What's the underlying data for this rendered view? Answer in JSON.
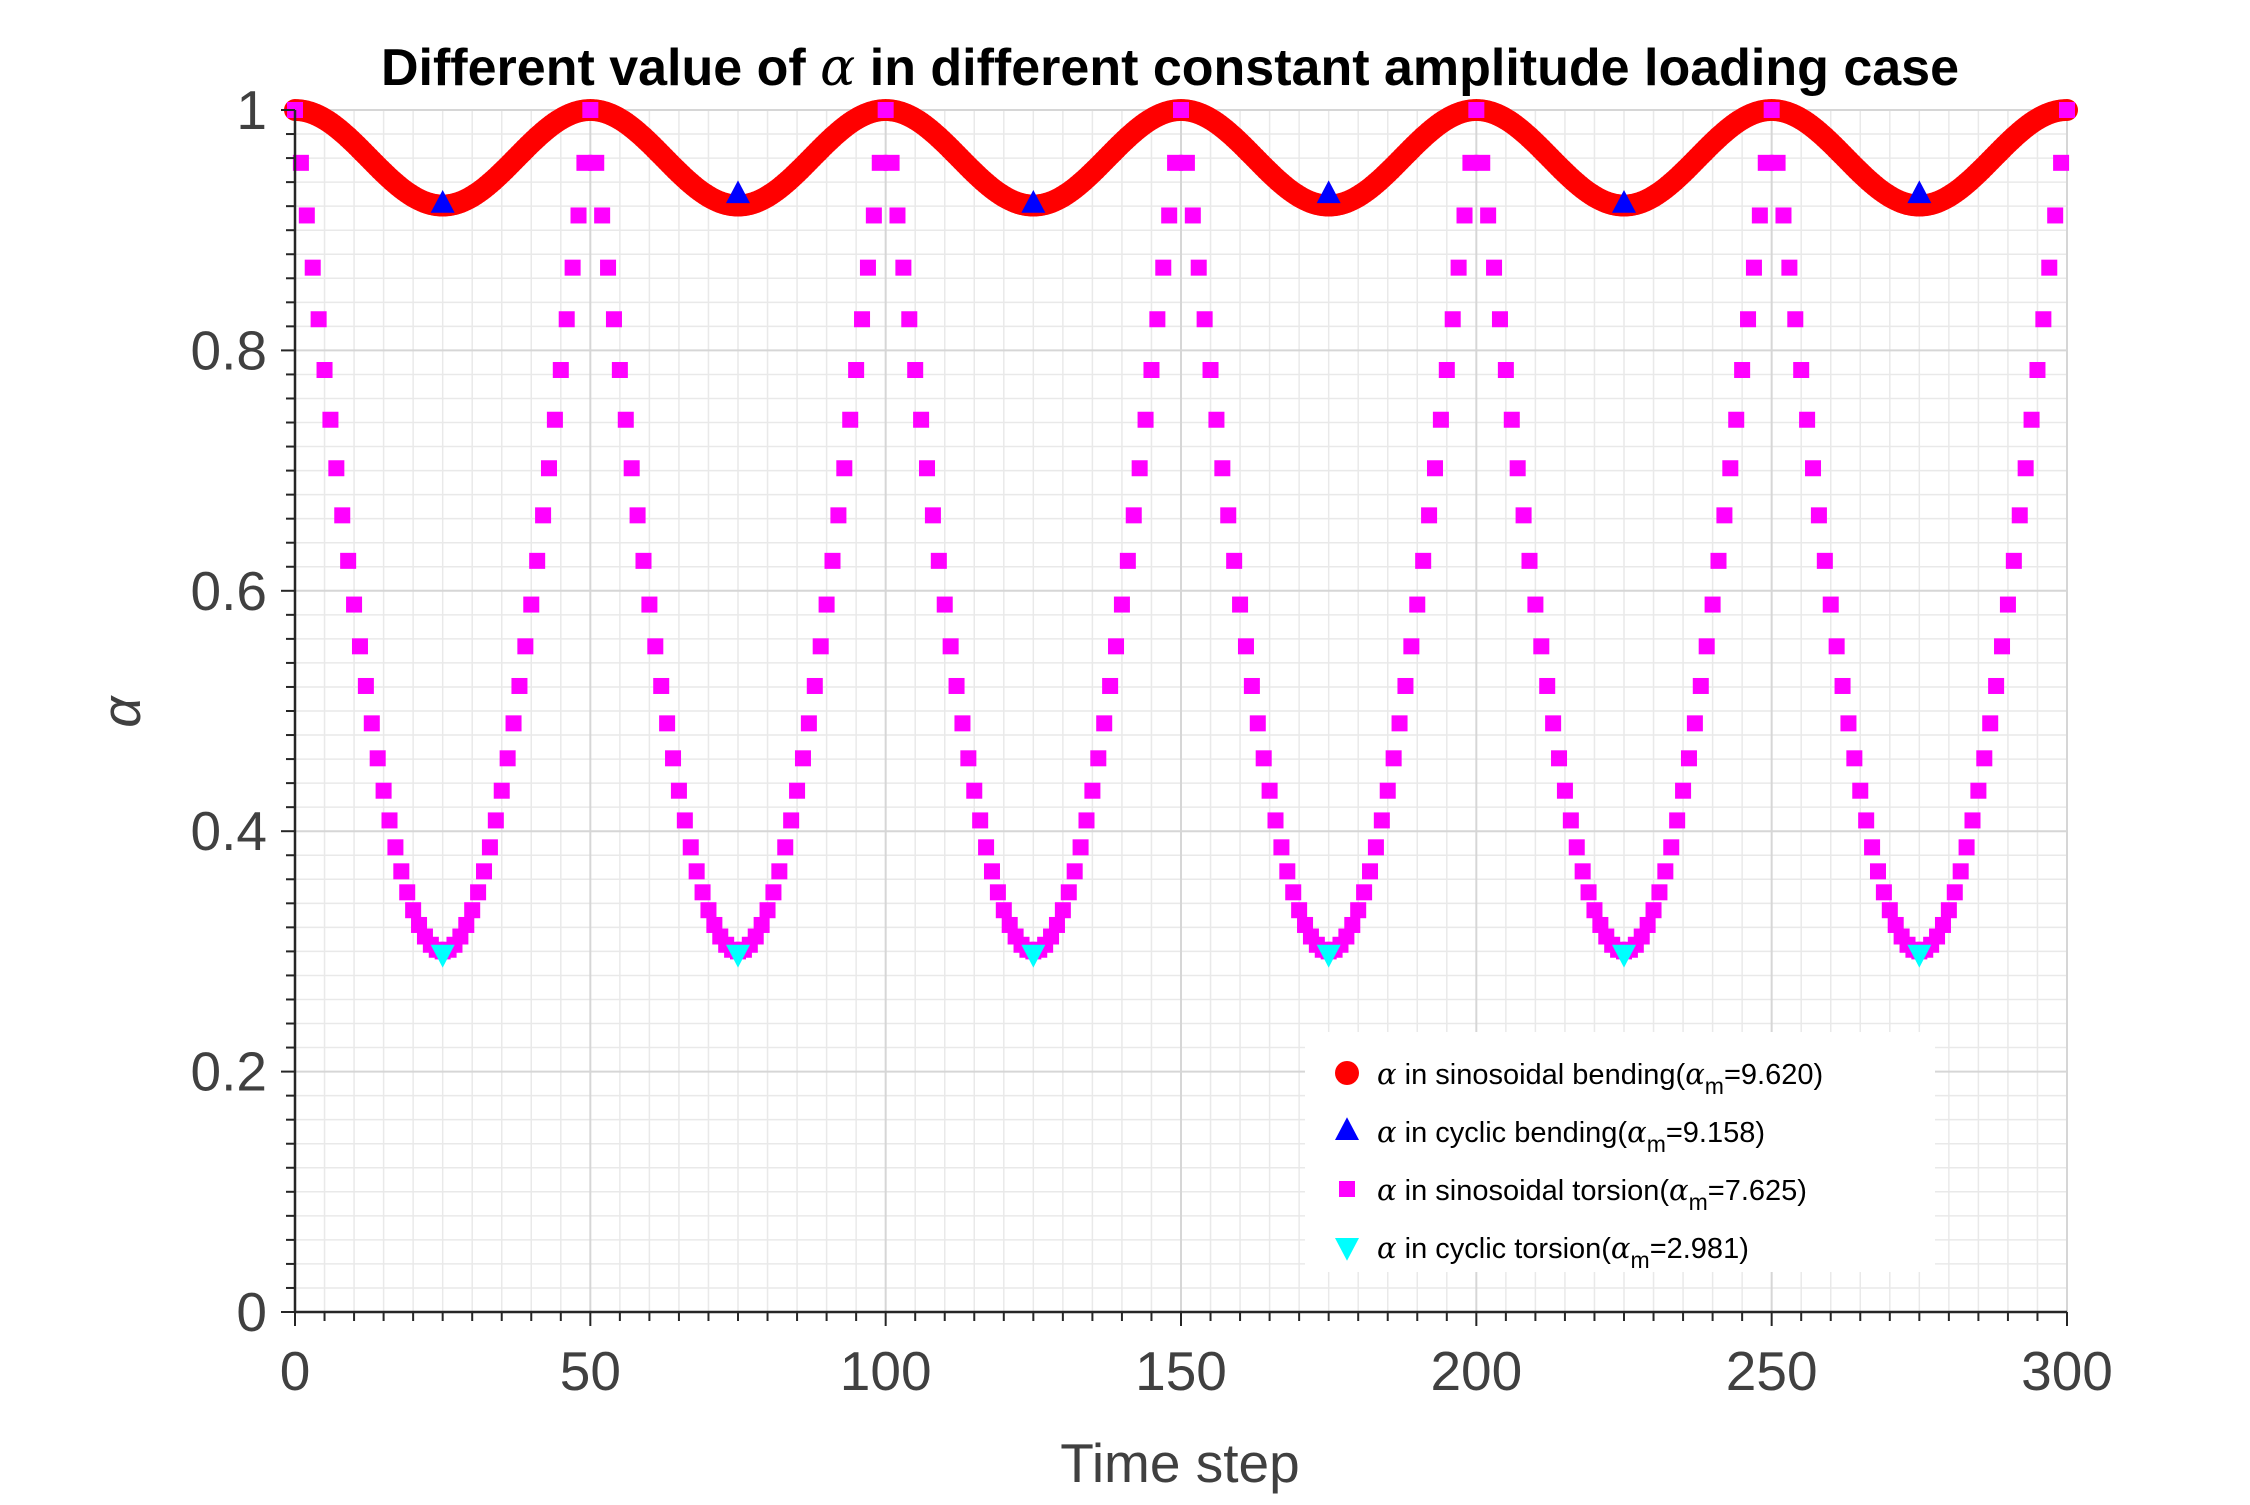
{
  "chart_data": {
    "type": "scatter",
    "title_parts": [
      "Different value of ",
      "α",
      " in different constant amplitude loading case"
    ],
    "xlabel": "Time step",
    "ylabel": "α",
    "xlim": [
      0,
      300
    ],
    "ylim": [
      0,
      1
    ],
    "x_ticks": [
      0,
      50,
      100,
      150,
      200,
      250,
      300
    ],
    "x_tick_labels": [
      "0",
      "50",
      "100",
      "150",
      "200",
      "250",
      "300"
    ],
    "y_ticks": [
      0,
      0.2,
      0.4,
      0.6,
      0.8,
      1
    ],
    "y_tick_labels": [
      "0",
      "0.2",
      "0.4",
      "0.6",
      "0.8",
      "1"
    ],
    "grid": true,
    "minor_grid": true,
    "legend_position": "bottom-right",
    "series": [
      {
        "name": "α in sinosoidal bending(α_m=9.620)",
        "legend": {
          "prefix": "α",
          "text": " in sinosoidal bending(",
          "sym": "α",
          "sub": "m",
          "suffix": "=9.620)"
        },
        "marker": "circle",
        "color": "#ff0000",
        "x_range": [
          0,
          300
        ],
        "x_step": 0.5,
        "formula": "1 - 0.0795*sin(pi*x/50)^2",
        "min_value": 0.9205
      },
      {
        "name": "α in cyclic bending(α_m=9.158)",
        "legend": {
          "prefix": "α",
          "text": " in cyclic bending(",
          "sym": "α",
          "sub": "m",
          "suffix": "=9.158)"
        },
        "marker": "triangle-up",
        "color": "#0000ff",
        "x": [
          25,
          75,
          125,
          175,
          225,
          275
        ],
        "y": [
          0.922,
          0.93,
          0.922,
          0.93,
          0.922,
          0.93
        ]
      },
      {
        "name": "α in sinosoidal torsion(α_m=7.625)",
        "legend": {
          "prefix": "α",
          "text": " in sinosoidal torsion(",
          "sym": "α",
          "sub": "m",
          "suffix": "=7.625)"
        },
        "marker": "square",
        "color": "#ff00ff",
        "x_range": [
          0,
          300
        ],
        "x_step": 1,
        "formula": "1 - 0.7*|sin(pi*x/50)|",
        "min_value": 0.3
      },
      {
        "name": "α in cyclic torsion(α_m=2.981)",
        "legend": {
          "prefix": "α",
          "text": " in cyclic torsion(",
          "sym": "α",
          "sub": "m",
          "suffix": "=2.981)"
        },
        "marker": "triangle-down",
        "color": "#00ffff",
        "x": [
          25,
          75,
          125,
          175,
          225,
          275
        ],
        "y": [
          0.298,
          0.298,
          0.298,
          0.298,
          0.298,
          0.298
        ]
      }
    ]
  }
}
